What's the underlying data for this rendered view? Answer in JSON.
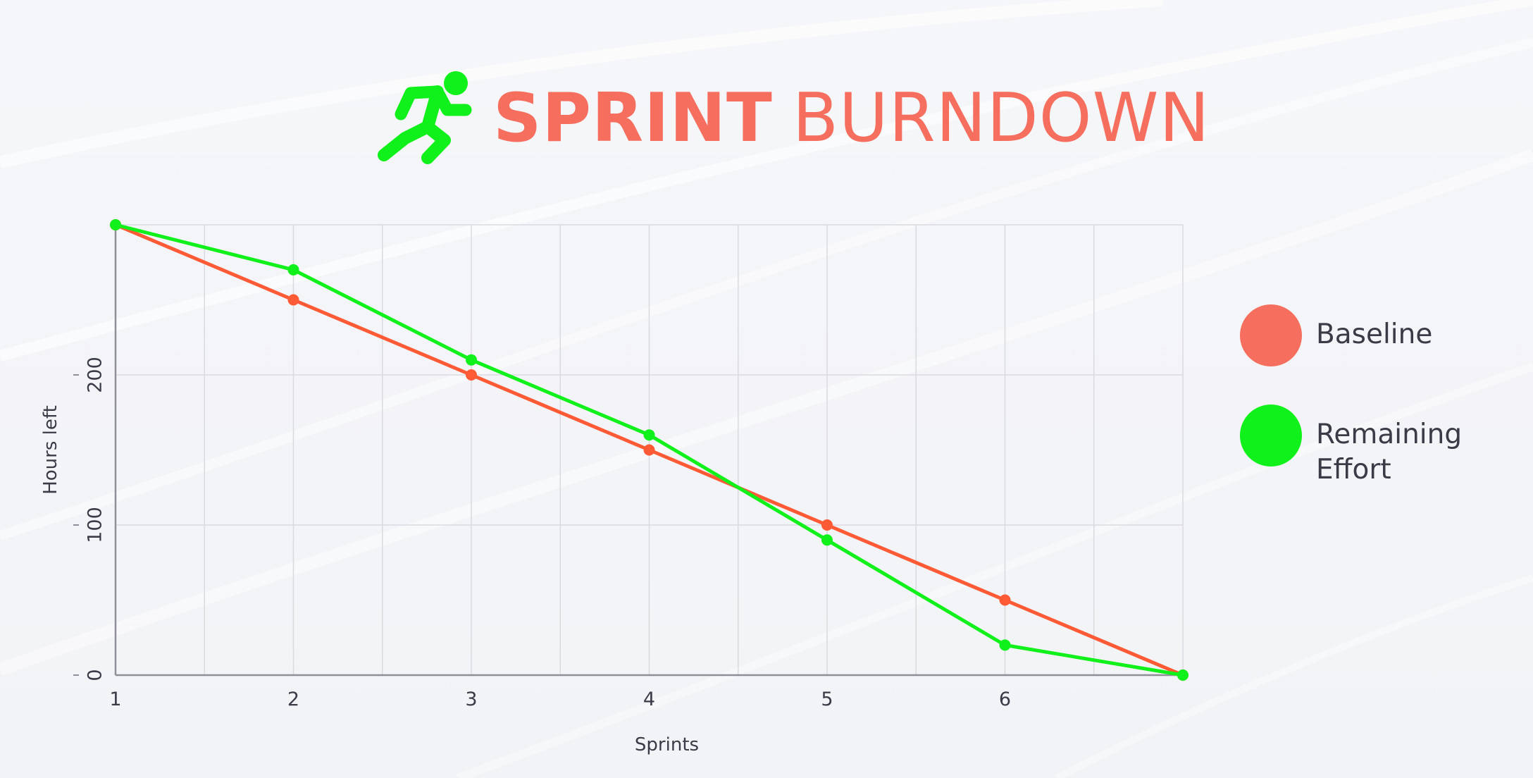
{
  "header": {
    "title_bold": "SPRINT",
    "title_light": "BURNDOWN",
    "icon": "runner-icon"
  },
  "colors": {
    "background": "#f3f4f7",
    "title": "#f56e5e",
    "baseline": "#ff5a36",
    "baseline_legend": "#f56e5e",
    "remaining": "#10f01a",
    "grid": "#d9dae0",
    "axis": "#8f9097",
    "text": "#3a3b47"
  },
  "chart_data": {
    "type": "line",
    "xlabel": "Sprints",
    "ylabel": "Hours left",
    "x": [
      1,
      2,
      3,
      4,
      5,
      6,
      7
    ],
    "x_tick_labels": [
      "1",
      "2",
      "3",
      "4",
      "5",
      "6"
    ],
    "y_tick_labels": [
      "0",
      "100",
      "200"
    ],
    "xlim": [
      1,
      7
    ],
    "ylim": [
      0,
      300
    ],
    "grid": true,
    "legend_position": "right",
    "series": [
      {
        "name": "Baseline",
        "values": [
          300,
          250,
          200,
          150,
          100,
          50,
          0
        ]
      },
      {
        "name": "Remaining Effort",
        "values": [
          300,
          270,
          210,
          160,
          90,
          20,
          0
        ]
      }
    ]
  },
  "legend": {
    "items": [
      {
        "label": "Baseline"
      },
      {
        "label": "Remaining Effort"
      }
    ]
  }
}
